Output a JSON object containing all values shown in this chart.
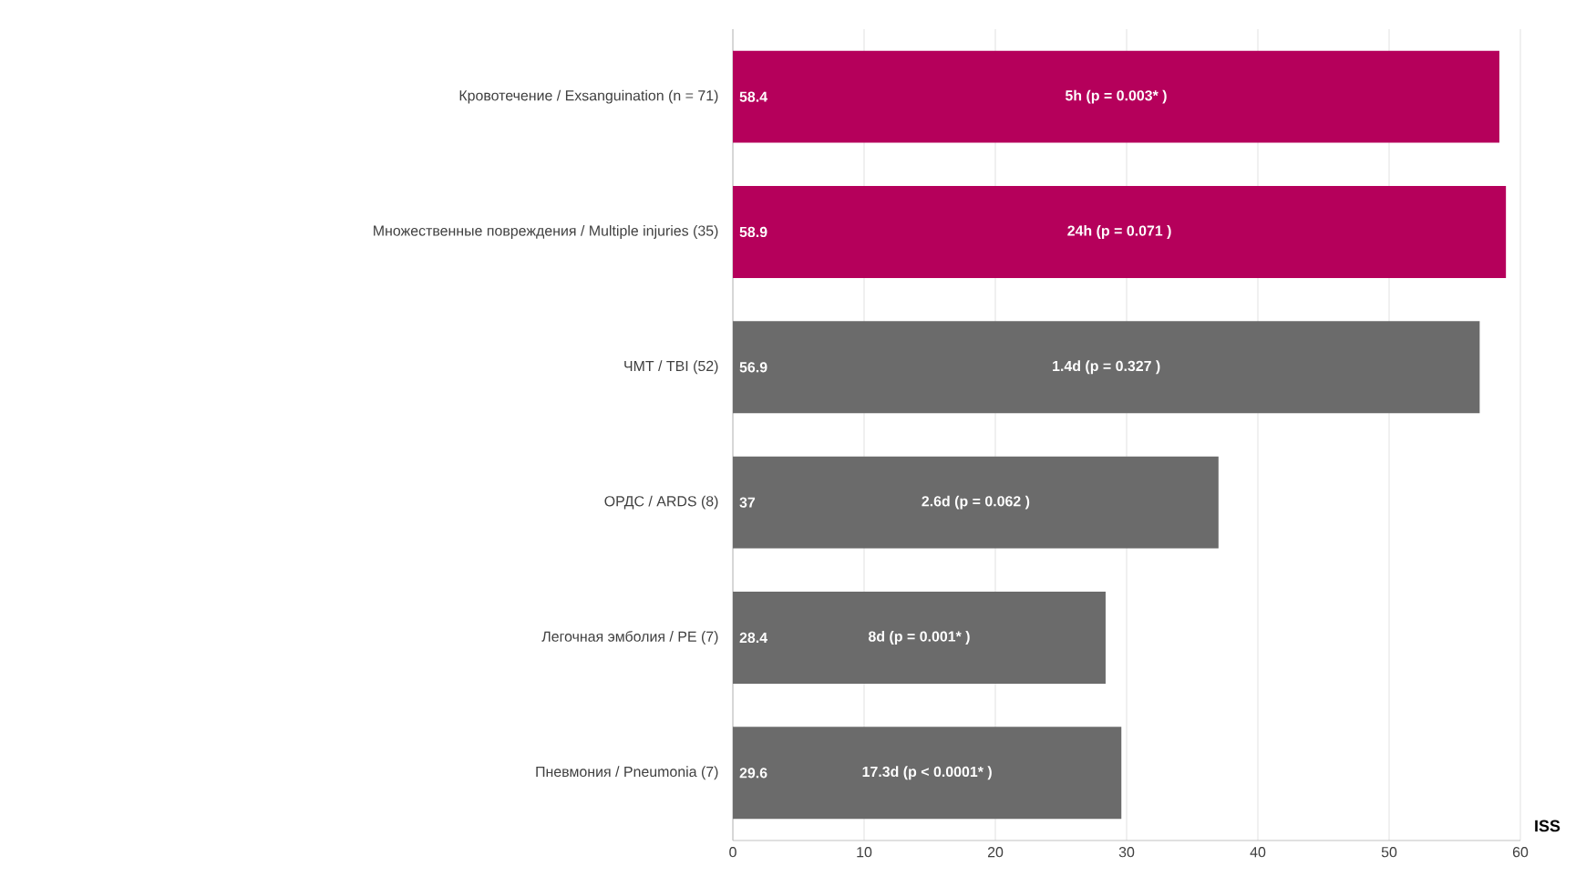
{
  "chart_data": {
    "type": "bar",
    "orientation": "horizontal",
    "categories": [
      "Кровотечение / Exsanguination (n = 71)",
      "Множественные повреждения / Multiple injuries (35)",
      "ЧМТ / TBI (52)",
      "ОРДС / ARDS (8)",
      "Легочная эмболия / PE (7)",
      "Пневмония / Pneumonia (7)"
    ],
    "values": [
      58.4,
      58.9,
      56.9,
      37,
      28.4,
      29.6
    ],
    "colors": [
      "#b5005b",
      "#b5005b",
      "#6b6b6b",
      "#6b6b6b",
      "#6b6b6b",
      "#6b6b6b"
    ],
    "data_labels": true,
    "annotations": [
      "5h (p = 0.003* )",
      "24h (p = 0.071 )",
      "1.4d (p = 0.327 )",
      "2.6d (p = 0.062 )",
      "8d (p = 0.001* )",
      "17.3d (p < 0.0001* )"
    ],
    "xlabel": "ISS",
    "xlim": [
      0,
      60
    ],
    "xticks": [
      0,
      10,
      20,
      30,
      40,
      50,
      60
    ],
    "grid": "x"
  }
}
